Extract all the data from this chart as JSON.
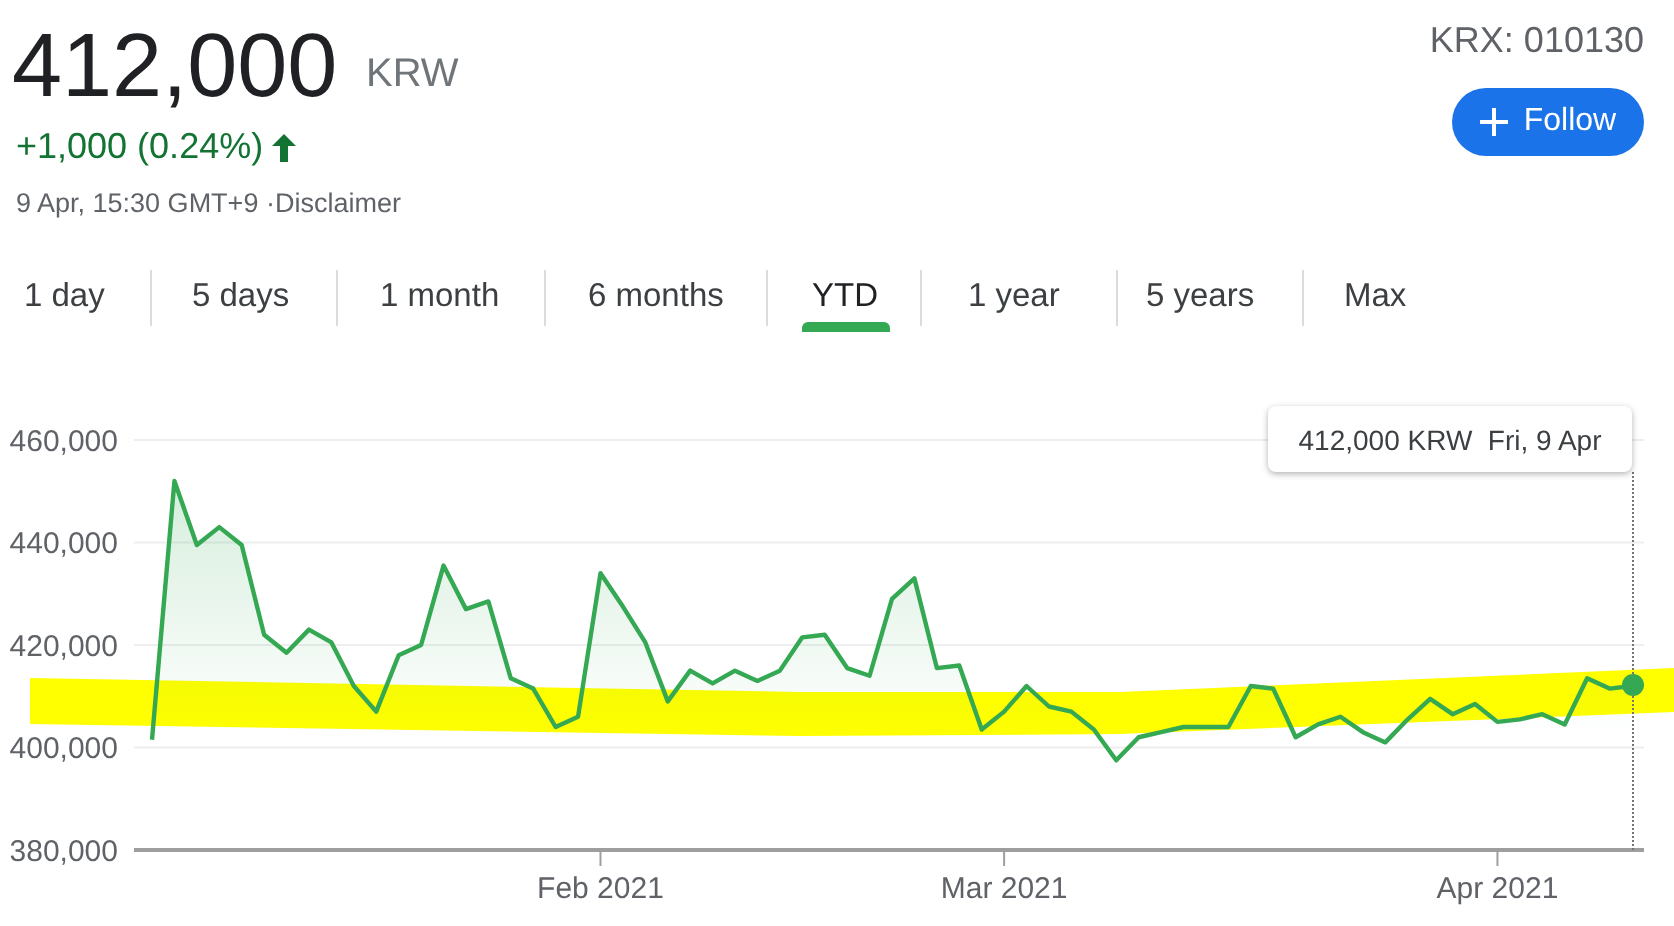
{
  "chart_data": {
    "type": "area",
    "title": "412,000",
    "annotations": [
      "KRW",
      "+1,000 (0.24%)",
      "9 Apr, 15:30 GMT+9 ·Disclaimer",
      "KRX: 010130",
      "Follow",
      "1 day",
      "5 days",
      "1 month",
      "6 months",
      "YTD",
      "1 year",
      "5 years",
      "Max",
      "412,000 KRW  Fri, 9 Apr"
    ],
    "categories": [
      null,
      null,
      null,
      null,
      null,
      null,
      null,
      null,
      null,
      null,
      null,
      null,
      null,
      null,
      null,
      null,
      null,
      null,
      null,
      null,
      "Feb 2021",
      null,
      null,
      null,
      null,
      null,
      null,
      null,
      null,
      null,
      null,
      null,
      null,
      null,
      null,
      null,
      null,
      null,
      "Mar 2021",
      null,
      null,
      null,
      null,
      null,
      null,
      null,
      null,
      null,
      null,
      null,
      null,
      null,
      null,
      null,
      null,
      null,
      null,
      null,
      null,
      null,
      "Apr 2021",
      null,
      null,
      null,
      null,
      null,
      null
    ],
    "series": [
      {
        "color": "#34a853",
        "values": [
          401500,
          452000,
          439500,
          443000,
          439500,
          422000,
          418500,
          423000,
          420500,
          412000,
          407000,
          418000,
          420000,
          435500,
          427000,
          428500,
          413500,
          411500,
          404000,
          406000,
          434000,
          427500,
          420500,
          409000,
          415000,
          412500,
          415000,
          413000,
          415000,
          421500,
          422000,
          415500,
          414000,
          429000,
          433000,
          415500,
          416000,
          403500,
          407000,
          412000,
          408000,
          407000,
          403500,
          397500,
          402000,
          403000,
          404000,
          404000,
          404000,
          412000,
          411500,
          402000,
          404500,
          406000,
          403000,
          401000,
          405500,
          409500,
          406500,
          408500,
          405000,
          405500,
          406500,
          404500,
          413500,
          411500,
          412000
        ]
      }
    ],
    "ylim": [
      380000,
      460000
    ],
    "yticks": [
      {
        "value": 380000,
        "label": "380,000"
      },
      {
        "value": 400000,
        "label": "400,000"
      },
      {
        "value": 420000,
        "label": "420,000"
      },
      {
        "value": 440000,
        "label": "440,000"
      },
      {
        "value": 460000,
        "label": "460,000"
      }
    ],
    "grid": "y",
    "legend": false,
    "marker": "none",
    "line_style": "solid"
  }
}
